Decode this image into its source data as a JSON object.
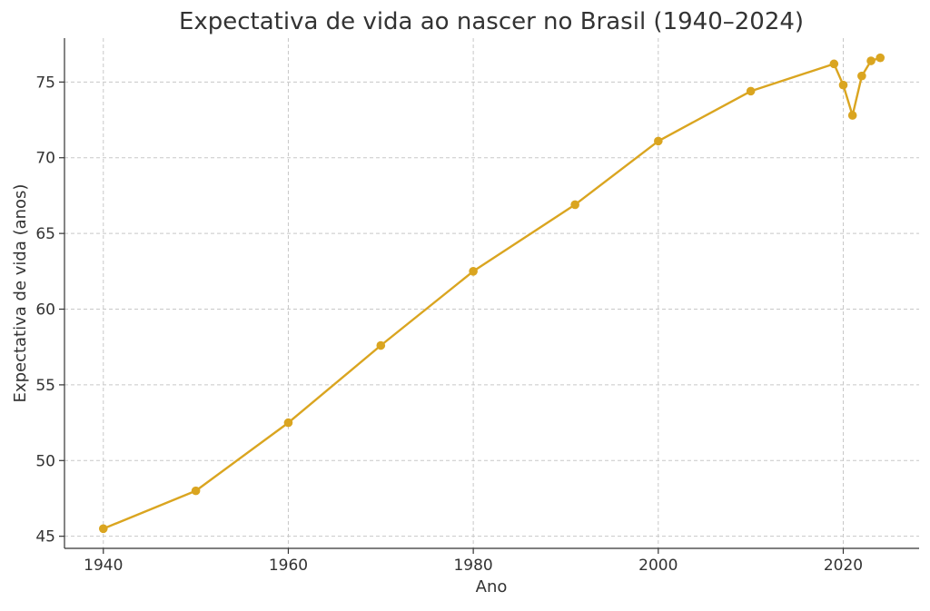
{
  "chart_data": {
    "type": "line",
    "title": "Expectativa de vida ao nascer no Brasil (1940–2024)",
    "xlabel": "Ano",
    "ylabel": "Expectativa de vida (anos)",
    "xlim": [
      1935.8,
      2028.2
    ],
    "ylim": [
      44.2,
      77.9
    ],
    "x_ticks": [
      1940,
      1960,
      1980,
      2000,
      2020
    ],
    "y_ticks": [
      45,
      50,
      55,
      60,
      65,
      70,
      75
    ],
    "grid": true,
    "series": [
      {
        "color": "#DAA520",
        "points": [
          {
            "x": 1940,
            "y": 45.5
          },
          {
            "x": 1950,
            "y": 48.0
          },
          {
            "x": 1960,
            "y": 52.5
          },
          {
            "x": 1970,
            "y": 57.6
          },
          {
            "x": 1980,
            "y": 62.5
          },
          {
            "x": 1991,
            "y": 66.9
          },
          {
            "x": 2000,
            "y": 71.1
          },
          {
            "x": 2010,
            "y": 74.4
          },
          {
            "x": 2019,
            "y": 76.2
          },
          {
            "x": 2020,
            "y": 74.8
          },
          {
            "x": 2021,
            "y": 72.8
          },
          {
            "x": 2022,
            "y": 75.4
          },
          {
            "x": 2023,
            "y": 76.4
          },
          {
            "x": 2024,
            "y": 76.6
          }
        ]
      }
    ]
  }
}
